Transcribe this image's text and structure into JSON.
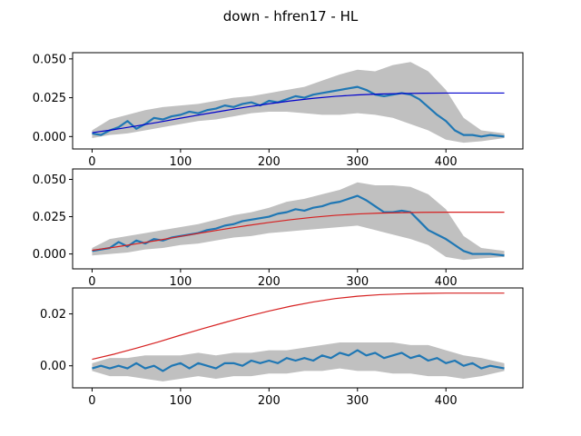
{
  "figure": {
    "title": "down - hfren17 - HL"
  },
  "chart_data": [
    {
      "type": "line",
      "xlim": [
        -22,
        487
      ],
      "ylim": [
        -0.008,
        0.054
      ],
      "xticks": [
        0,
        100,
        200,
        300,
        400
      ],
      "yticks": [
        0.0,
        0.025,
        0.05
      ],
      "ytick_labels": [
        "0.000",
        "0.025",
        "0.050"
      ],
      "grid": false,
      "series": [
        {
          "role": "band",
          "color": "#c0c0c0",
          "x": [
            0,
            20,
            40,
            60,
            80,
            100,
            120,
            140,
            160,
            180,
            200,
            220,
            240,
            260,
            280,
            300,
            320,
            340,
            360,
            380,
            400,
            420,
            440,
            466
          ],
          "lower": [
            -0.001,
            0.001,
            0.002,
            0.004,
            0.006,
            0.008,
            0.01,
            0.011,
            0.013,
            0.015,
            0.016,
            0.016,
            0.015,
            0.014,
            0.014,
            0.015,
            0.014,
            0.012,
            0.008,
            0.004,
            -0.002,
            -0.004,
            -0.003,
            -0.001
          ],
          "upper": [
            0.004,
            0.011,
            0.014,
            0.017,
            0.019,
            0.02,
            0.021,
            0.023,
            0.025,
            0.026,
            0.028,
            0.03,
            0.032,
            0.036,
            0.04,
            0.043,
            0.042,
            0.046,
            0.048,
            0.042,
            0.03,
            0.012,
            0.004,
            0.002
          ]
        },
        {
          "role": "mean",
          "color": "#1f77b4",
          "x": [
            0,
            10,
            20,
            30,
            40,
            50,
            60,
            70,
            80,
            90,
            100,
            110,
            120,
            130,
            140,
            150,
            160,
            170,
            180,
            190,
            200,
            210,
            220,
            230,
            240,
            250,
            260,
            270,
            280,
            290,
            300,
            310,
            320,
            330,
            340,
            350,
            360,
            370,
            380,
            390,
            400,
            410,
            420,
            430,
            440,
            450,
            466
          ],
          "y": [
            0.002,
            0.001,
            0.004,
            0.006,
            0.01,
            0.005,
            0.008,
            0.012,
            0.011,
            0.013,
            0.014,
            0.016,
            0.015,
            0.017,
            0.018,
            0.02,
            0.019,
            0.021,
            0.022,
            0.02,
            0.023,
            0.022,
            0.024,
            0.026,
            0.025,
            0.027,
            0.028,
            0.029,
            0.03,
            0.031,
            0.032,
            0.03,
            0.027,
            0.026,
            0.027,
            0.028,
            0.027,
            0.024,
            0.019,
            0.014,
            0.01,
            0.004,
            0.001,
            0.001,
            0.0,
            0.001,
            0.0
          ]
        },
        {
          "role": "fit",
          "color": "#0000cd",
          "x": [
            0,
            25,
            50,
            75,
            100,
            125,
            150,
            175,
            200,
            225,
            250,
            275,
            300,
            325,
            350,
            375,
            400,
            425,
            466
          ],
          "y": [
            0.0025,
            0.0045,
            0.0068,
            0.0092,
            0.0118,
            0.0143,
            0.0167,
            0.019,
            0.0211,
            0.023,
            0.0246,
            0.0259,
            0.0268,
            0.0274,
            0.0277,
            0.0279,
            0.028,
            0.028,
            0.028
          ]
        }
      ]
    },
    {
      "type": "line",
      "xlim": [
        -22,
        487
      ],
      "ylim": [
        -0.01,
        0.057
      ],
      "xticks": [
        0,
        100,
        200,
        300,
        400
      ],
      "yticks": [
        0.0,
        0.025,
        0.05
      ],
      "ytick_labels": [
        "0.000",
        "0.025",
        "0.050"
      ],
      "grid": false,
      "series": [
        {
          "role": "band",
          "color": "#c0c0c0",
          "x": [
            0,
            20,
            40,
            60,
            80,
            100,
            120,
            140,
            160,
            180,
            200,
            220,
            240,
            260,
            280,
            300,
            320,
            340,
            360,
            380,
            400,
            420,
            440,
            466
          ],
          "lower": [
            -0.001,
            0.0,
            0.001,
            0.003,
            0.004,
            0.006,
            0.007,
            0.009,
            0.011,
            0.012,
            0.014,
            0.015,
            0.016,
            0.017,
            0.018,
            0.019,
            0.016,
            0.013,
            0.01,
            0.006,
            -0.002,
            -0.004,
            -0.003,
            -0.002
          ],
          "upper": [
            0.004,
            0.01,
            0.012,
            0.014,
            0.016,
            0.018,
            0.02,
            0.023,
            0.026,
            0.028,
            0.031,
            0.035,
            0.037,
            0.04,
            0.043,
            0.048,
            0.046,
            0.046,
            0.045,
            0.04,
            0.03,
            0.012,
            0.004,
            0.002
          ]
        },
        {
          "role": "mean",
          "color": "#1f77b4",
          "x": [
            0,
            10,
            20,
            30,
            40,
            50,
            60,
            70,
            80,
            90,
            100,
            110,
            120,
            130,
            140,
            150,
            160,
            170,
            180,
            190,
            200,
            210,
            220,
            230,
            240,
            250,
            260,
            270,
            280,
            290,
            300,
            310,
            320,
            330,
            340,
            350,
            360,
            370,
            380,
            390,
            400,
            410,
            420,
            430,
            440,
            450,
            466
          ],
          "y": [
            0.002,
            0.003,
            0.004,
            0.008,
            0.005,
            0.009,
            0.007,
            0.01,
            0.009,
            0.011,
            0.012,
            0.013,
            0.014,
            0.016,
            0.017,
            0.019,
            0.02,
            0.022,
            0.023,
            0.024,
            0.025,
            0.027,
            0.028,
            0.03,
            0.029,
            0.031,
            0.032,
            0.034,
            0.035,
            0.037,
            0.039,
            0.036,
            0.032,
            0.028,
            0.028,
            0.029,
            0.028,
            0.022,
            0.016,
            0.013,
            0.01,
            0.006,
            0.002,
            0.0,
            0.0,
            0.0,
            -0.001
          ]
        },
        {
          "role": "fit",
          "color": "#d62020",
          "x": [
            0,
            25,
            50,
            75,
            100,
            125,
            150,
            175,
            200,
            225,
            250,
            275,
            300,
            325,
            350,
            375,
            400,
            425,
            466
          ],
          "y": [
            0.0025,
            0.0045,
            0.0068,
            0.0092,
            0.0118,
            0.0143,
            0.0167,
            0.019,
            0.0211,
            0.023,
            0.0246,
            0.0259,
            0.0268,
            0.0274,
            0.0277,
            0.0279,
            0.028,
            0.028,
            0.028
          ]
        }
      ]
    },
    {
      "type": "line",
      "xlim": [
        -22,
        487
      ],
      "ylim": [
        -0.0085,
        0.03
      ],
      "xticks": [
        0,
        100,
        200,
        300,
        400
      ],
      "yticks": [
        0.0,
        0.02
      ],
      "ytick_labels": [
        "0.00",
        "0.02"
      ],
      "grid": false,
      "series": [
        {
          "role": "band",
          "color": "#c0c0c0",
          "x": [
            0,
            20,
            40,
            60,
            80,
            100,
            120,
            140,
            160,
            180,
            200,
            220,
            240,
            260,
            280,
            300,
            320,
            340,
            360,
            380,
            400,
            420,
            440,
            466
          ],
          "lower": [
            -0.002,
            -0.004,
            -0.004,
            -0.005,
            -0.006,
            -0.005,
            -0.004,
            -0.005,
            -0.004,
            -0.004,
            -0.003,
            -0.003,
            -0.002,
            -0.002,
            -0.001,
            -0.002,
            -0.002,
            -0.003,
            -0.003,
            -0.004,
            -0.004,
            -0.005,
            -0.004,
            -0.002
          ],
          "upper": [
            0.001,
            0.003,
            0.003,
            0.004,
            0.004,
            0.004,
            0.005,
            0.004,
            0.005,
            0.005,
            0.006,
            0.006,
            0.007,
            0.008,
            0.009,
            0.009,
            0.009,
            0.009,
            0.008,
            0.008,
            0.006,
            0.004,
            0.003,
            0.001
          ]
        },
        {
          "role": "mean",
          "color": "#1f77b4",
          "x": [
            0,
            10,
            20,
            30,
            40,
            50,
            60,
            70,
            80,
            90,
            100,
            110,
            120,
            130,
            140,
            150,
            160,
            170,
            180,
            190,
            200,
            210,
            220,
            230,
            240,
            250,
            260,
            270,
            280,
            290,
            300,
            310,
            320,
            330,
            340,
            350,
            360,
            370,
            380,
            390,
            400,
            410,
            420,
            430,
            440,
            450,
            466
          ],
          "y": [
            -0.001,
            0.0,
            -0.001,
            0.0,
            -0.001,
            0.001,
            -0.001,
            0.0,
            -0.002,
            0.0,
            0.001,
            -0.001,
            0.001,
            0.0,
            -0.001,
            0.001,
            0.001,
            0.0,
            0.002,
            0.001,
            0.002,
            0.001,
            0.003,
            0.002,
            0.003,
            0.002,
            0.004,
            0.003,
            0.005,
            0.004,
            0.006,
            0.004,
            0.005,
            0.003,
            0.004,
            0.005,
            0.003,
            0.004,
            0.002,
            0.003,
            0.001,
            0.002,
            0.0,
            0.001,
            -0.001,
            0.0,
            -0.001
          ]
        },
        {
          "role": "fit",
          "color": "#d62020",
          "x": [
            0,
            25,
            50,
            75,
            100,
            125,
            150,
            175,
            200,
            225,
            250,
            275,
            300,
            325,
            350,
            375,
            400,
            425,
            466
          ],
          "y": [
            0.0025,
            0.0045,
            0.0068,
            0.0092,
            0.0118,
            0.0143,
            0.0167,
            0.019,
            0.0211,
            0.023,
            0.0246,
            0.0259,
            0.0268,
            0.0274,
            0.0277,
            0.0279,
            0.028,
            0.028,
            0.028
          ]
        }
      ]
    }
  ]
}
